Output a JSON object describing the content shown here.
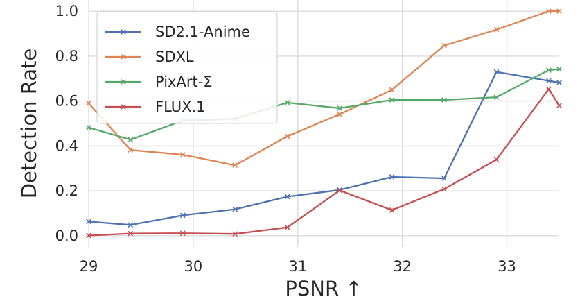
{
  "chart_data": {
    "type": "line",
    "title": "",
    "xlabel": "PSNR ↑",
    "ylabel": "Detection Rate",
    "xlim": [
      29,
      33.5
    ],
    "ylim": [
      -0.05,
      1.05
    ],
    "xticks": [
      29,
      30,
      31,
      32,
      33
    ],
    "xtick_labels": [
      "29",
      "30",
      "31",
      "32",
      "33"
    ],
    "yticks": [
      0.0,
      0.2,
      0.4,
      0.6,
      0.8,
      1.0
    ],
    "ytick_labels": [
      "0.0",
      "0.2",
      "0.4",
      "0.6",
      "0.8",
      "1.0"
    ],
    "grid": true,
    "legend_position": "top-left",
    "series": [
      {
        "name": "SD2.1-Anime",
        "color": "#4c72b0",
        "x": [
          29.0,
          29.4,
          29.9,
          30.4,
          30.9,
          31.4,
          31.9,
          32.4,
          32.9,
          33.4,
          33.5
        ],
        "y": [
          0.063,
          0.048,
          0.091,
          0.118,
          0.174,
          0.204,
          0.262,
          0.256,
          0.73,
          0.69,
          0.682
        ]
      },
      {
        "name": "SDXL",
        "color": "#dd8452",
        "x": [
          29.0,
          29.4,
          29.9,
          30.4,
          30.9,
          31.4,
          31.9,
          32.4,
          32.9,
          33.4,
          33.5
        ],
        "y": [
          0.59,
          0.382,
          0.361,
          0.314,
          0.443,
          0.541,
          0.65,
          0.847,
          0.918,
          1.0,
          1.0
        ]
      },
      {
        "name": "PixArt-Σ",
        "color": "#55a868",
        "x": [
          29.0,
          29.4,
          29.9,
          30.4,
          30.9,
          31.4,
          31.9,
          32.4,
          32.9,
          33.4,
          33.5
        ],
        "y": [
          0.482,
          0.428,
          0.513,
          0.521,
          0.593,
          0.568,
          0.605,
          0.605,
          0.617,
          0.738,
          0.742
        ]
      },
      {
        "name": "FLUX.1",
        "color": "#c44e52",
        "x": [
          29.0,
          29.4,
          29.9,
          30.4,
          30.9,
          31.4,
          31.9,
          32.4,
          32.9,
          33.4,
          33.5
        ],
        "y": [
          0.001,
          0.01,
          0.011,
          0.008,
          0.037,
          0.202,
          0.114,
          0.208,
          0.339,
          0.653,
          0.58
        ]
      }
    ]
  }
}
